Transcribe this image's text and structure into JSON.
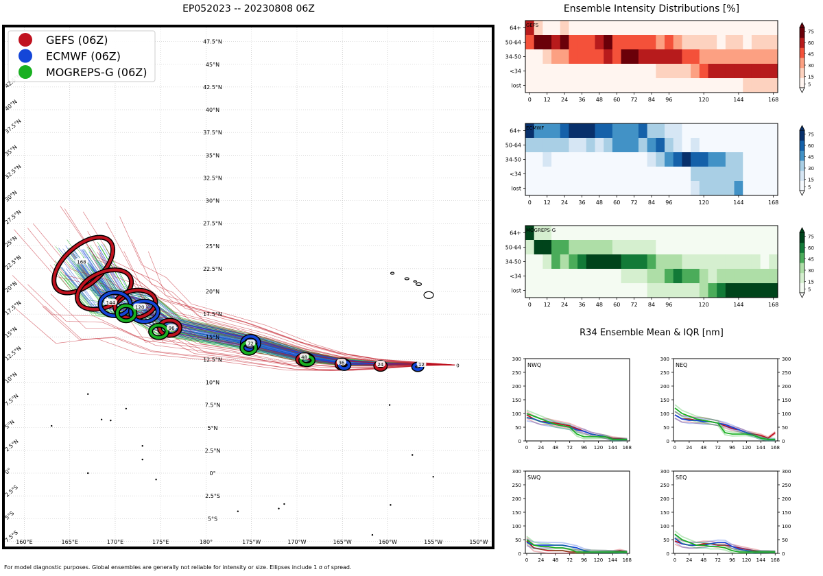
{
  "map": {
    "title": "EP052023 -- 20230808 06Z",
    "legend": [
      {
        "label": "GEFS (06Z)",
        "color": "#c0121f"
      },
      {
        "label": "ECMWF (06Z)",
        "color": "#1446d8"
      },
      {
        "label": "MOGREPS-G (06Z)",
        "color": "#19b021"
      }
    ],
    "lat_labels": [
      "47.5°N",
      "45°N",
      "42.5°N",
      "40°N",
      "37.5°N",
      "35°N",
      "32.5°N",
      "30°N",
      "27.5°N",
      "25°N",
      "22.5°N",
      "20°N",
      "17.5°N",
      "15°N",
      "12.5°N",
      "10°N",
      "7.5°N",
      "5°N",
      "2.5°N",
      "0°",
      "2.5°S",
      "5°S"
    ],
    "lon_labels": [
      "160°E",
      "165°E",
      "170°E",
      "175°E",
      "180°",
      "175°W",
      "170°W",
      "165°W",
      "160°W",
      "155°W",
      "150°W"
    ],
    "left_lat_labels": [
      "42.5°N",
      "40°N",
      "37.5°N",
      "35°N",
      "32.5°N",
      "30°N",
      "27.5°N",
      "25°N",
      "22.5°N",
      "20°N",
      "17.5°N",
      "15°N",
      "12.5°N",
      "10°N",
      "7.5°N",
      "5°N",
      "2.5°N",
      "0°",
      "2.5°S",
      "5°S",
      "7.5°S"
    ],
    "track_labels": [
      {
        "t": "0",
        "lon": -152.3,
        "lat": 11.9
      },
      {
        "t": "12",
        "lon": -156.3,
        "lat": 12.0
      },
      {
        "t": "24",
        "lon": -160.8,
        "lat": 12.0
      },
      {
        "t": "36",
        "lon": -165.1,
        "lat": 12.2
      },
      {
        "t": "48",
        "lon": -169.2,
        "lat": 12.8
      },
      {
        "t": "72",
        "lon": -175.1,
        "lat": 14.3
      },
      {
        "t": "96",
        "lon": -183.8,
        "lat": 16.0
      },
      {
        "t": "120",
        "lon": -187.3,
        "lat": 18.3
      },
      {
        "t": "144",
        "lon": -190.5,
        "lat": 18.8
      },
      {
        "t": "168",
        "lon": -193.7,
        "lat": 23.3
      }
    ],
    "footer": "For model diagnostic purposes. Global ensembles are generally not reliable for intensity or size. Ellipses include 1 σ of spread."
  },
  "intensity": {
    "title": "Ensemble Intensity Distributions [%]",
    "row_labels": [
      "64+",
      "50-64",
      "34-50",
      "<34",
      "lost"
    ],
    "x_ticks": [
      "0",
      "12",
      "24",
      "36",
      "48",
      "60",
      "72",
      "84",
      "96",
      "120",
      "144",
      "168"
    ],
    "colorbar_ticks": [
      "75",
      "60",
      "45",
      "30",
      "15",
      "5"
    ],
    "panels": [
      {
        "name": "GEFS",
        "colormap": "reds"
      },
      {
        "name": "ECMWF",
        "colormap": "blues"
      },
      {
        "name": "MOGREPS-G",
        "colormap": "greens"
      }
    ]
  },
  "r34": {
    "title": "R34 Ensemble Mean & IQR [nm]",
    "y_ticks": [
      "300",
      "250",
      "200",
      "150",
      "100",
      "50",
      "0"
    ],
    "x_ticks": [
      "0",
      "24",
      "48",
      "72",
      "96",
      "120",
      "144",
      "168"
    ],
    "quadrants": [
      "NWQ",
      "NEQ",
      "SWQ",
      "SEQ"
    ]
  },
  "chart_data": [
    {
      "type": "heatmap",
      "title": "GEFS",
      "x": [
        0,
        6,
        12,
        18,
        24,
        30,
        36,
        42,
        48,
        54,
        60,
        66,
        72,
        78,
        84,
        90,
        96,
        102,
        108,
        114,
        120,
        126,
        132,
        138,
        144,
        150,
        156,
        162,
        168
      ],
      "rows": [
        "64+",
        "50-64",
        "34-50",
        "<34",
        "lost"
      ],
      "values": [
        [
          60,
          15,
          5,
          0,
          10,
          0,
          0,
          0,
          0,
          0,
          0,
          0,
          0,
          0,
          0,
          0,
          0,
          0,
          0,
          0,
          0,
          0,
          0,
          0,
          0,
          0,
          0,
          0,
          0
        ],
        [
          40,
          75,
          65,
          55,
          75,
          45,
          45,
          45,
          60,
          75,
          45,
          35,
          35,
          35,
          35,
          20,
          35,
          20,
          15,
          15,
          15,
          15,
          0,
          15,
          15,
          0,
          15,
          15,
          15
        ],
        [
          0,
          5,
          15,
          30,
          30,
          45,
          45,
          45,
          45,
          60,
          45,
          75,
          75,
          60,
          60,
          60,
          60,
          60,
          45,
          45,
          30,
          30,
          30,
          30,
          30,
          30,
          30,
          30,
          30
        ],
        [
          0,
          0,
          0,
          0,
          0,
          0,
          0,
          0,
          0,
          0,
          0,
          0,
          0,
          0,
          0,
          15,
          15,
          15,
          15,
          30,
          45,
          55,
          60,
          60,
          60,
          60,
          60,
          60,
          60
        ],
        [
          0,
          0,
          0,
          0,
          0,
          0,
          0,
          0,
          0,
          0,
          0,
          0,
          0,
          0,
          0,
          0,
          0,
          0,
          0,
          0,
          0,
          0,
          0,
          0,
          5,
          15,
          15,
          15,
          15
        ]
      ],
      "vmax": 75
    },
    {
      "type": "heatmap",
      "title": "ECMWF",
      "x": [
        0,
        6,
        12,
        18,
        24,
        30,
        36,
        42,
        48,
        54,
        60,
        66,
        72,
        78,
        84,
        90,
        96,
        102,
        108,
        114,
        120,
        126,
        132,
        138,
        144,
        150,
        156,
        162,
        168
      ],
      "rows": [
        "64+",
        "50-64",
        "34-50",
        "<34",
        "lost"
      ],
      "values": [
        [
          80,
          45,
          45,
          45,
          60,
          75,
          75,
          75,
          60,
          60,
          45,
          45,
          45,
          60,
          30,
          30,
          15,
          15,
          5,
          5,
          5,
          5,
          5,
          5,
          5,
          0,
          0,
          0,
          0
        ],
        [
          30,
          30,
          30,
          30,
          30,
          15,
          15,
          30,
          15,
          30,
          45,
          45,
          45,
          30,
          45,
          60,
          30,
          15,
          5,
          15,
          5,
          5,
          5,
          5,
          5,
          0,
          0,
          0,
          0
        ],
        [
          5,
          5,
          15,
          5,
          5,
          5,
          5,
          5,
          5,
          5,
          5,
          5,
          5,
          5,
          15,
          30,
          45,
          60,
          75,
          60,
          60,
          45,
          45,
          30,
          30,
          0,
          0,
          0,
          0
        ],
        [
          5,
          5,
          5,
          5,
          5,
          5,
          5,
          5,
          5,
          5,
          5,
          5,
          5,
          5,
          5,
          5,
          5,
          5,
          5,
          30,
          30,
          30,
          30,
          30,
          30,
          0,
          0,
          0,
          0
        ],
        [
          0,
          0,
          0,
          0,
          0,
          0,
          0,
          0,
          0,
          0,
          0,
          0,
          0,
          0,
          0,
          0,
          0,
          0,
          5,
          15,
          30,
          30,
          30,
          30,
          45,
          0,
          0,
          0,
          0
        ]
      ],
      "vmax": 75
    },
    {
      "type": "heatmap",
      "title": "MOGREPS-G",
      "x": [
        0,
        6,
        12,
        18,
        24,
        30,
        36,
        42,
        48,
        54,
        60,
        66,
        72,
        78,
        84,
        90,
        96,
        102,
        108,
        114,
        120,
        126,
        132,
        138,
        144,
        150,
        156,
        162,
        168
      ],
      "rows": [
        "64+",
        "50-64",
        "34-50",
        "<34",
        "lost"
      ],
      "values": [
        [
          75,
          15,
          15,
          5,
          5,
          5,
          5,
          5,
          5,
          5,
          5,
          5,
          5,
          5,
          5,
          5,
          5,
          5,
          5,
          5,
          5,
          5,
          5,
          5,
          5,
          5,
          5,
          5,
          5
        ],
        [
          15,
          75,
          75,
          45,
          45,
          30,
          30,
          20,
          20,
          20,
          15,
          15,
          15,
          15,
          15,
          5,
          5,
          5,
          5,
          5,
          5,
          5,
          5,
          5,
          5,
          5,
          5,
          5,
          5
        ],
        [
          5,
          5,
          15,
          45,
          30,
          45,
          60,
          75,
          75,
          75,
          75,
          60,
          60,
          60,
          45,
          30,
          20,
          20,
          15,
          15,
          15,
          15,
          15,
          15,
          15,
          15,
          15,
          5,
          15
        ],
        [
          5,
          5,
          5,
          5,
          5,
          5,
          5,
          5,
          5,
          5,
          5,
          15,
          15,
          15,
          30,
          30,
          45,
          60,
          45,
          45,
          30,
          15,
          20,
          30,
          30,
          30,
          30,
          20,
          20
        ],
        [
          5,
          5,
          5,
          5,
          5,
          5,
          5,
          5,
          5,
          5,
          5,
          5,
          5,
          5,
          15,
          15,
          15,
          15,
          15,
          15,
          30,
          45,
          60,
          75,
          75,
          75,
          75,
          75,
          75
        ]
      ],
      "vmax": 75
    },
    {
      "type": "line",
      "title": "R34 Ensemble Mean & IQR [nm]",
      "x": [
        0,
        12,
        24,
        36,
        48,
        60,
        72,
        84,
        96,
        108,
        120,
        132,
        144,
        156,
        168
      ],
      "ylim": [
        0,
        300
      ],
      "quadrants": [
        {
          "name": "NWQ",
          "series": [
            {
              "name": "GEFS",
              "values": [
                95,
                80,
                70,
                70,
                65,
                60,
                55,
                45,
                35,
                25,
                20,
                15,
                10,
                8,
                5
              ]
            },
            {
              "name": "ECMWF",
              "values": [
                85,
                80,
                70,
                65,
                60,
                55,
                50,
                40,
                35,
                25,
                20,
                15,
                5,
                5,
                5
              ]
            },
            {
              "name": "MOGREPS-G",
              "values": [
                100,
                90,
                80,
                70,
                60,
                55,
                50,
                25,
                15,
                15,
                15,
                15,
                5,
                5,
                5
              ]
            }
          ]
        },
        {
          "name": "NEQ",
          "series": [
            {
              "name": "GEFS",
              "values": [
                95,
                80,
                80,
                75,
                75,
                70,
                65,
                55,
                45,
                40,
                30,
                25,
                20,
                10,
                30
              ]
            },
            {
              "name": "ECMWF",
              "values": [
                95,
                80,
                75,
                75,
                70,
                70,
                65,
                60,
                50,
                40,
                30,
                20,
                10,
                5,
                5
              ]
            },
            {
              "name": "MOGREPS-G",
              "values": [
                120,
                100,
                90,
                80,
                75,
                70,
                65,
                30,
                25,
                25,
                25,
                20,
                10,
                5,
                5
              ]
            }
          ]
        },
        {
          "name": "SWQ",
          "series": [
            {
              "name": "GEFS",
              "values": [
                45,
                20,
                15,
                10,
                10,
                10,
                5,
                5,
                5,
                5,
                5,
                5,
                5,
                10,
                5
              ]
            },
            {
              "name": "ECMWF",
              "values": [
                40,
                30,
                30,
                30,
                30,
                30,
                25,
                20,
                10,
                5,
                5,
                5,
                5,
                5,
                5
              ]
            },
            {
              "name": "MOGREPS-G",
              "values": [
                50,
                30,
                25,
                25,
                20,
                20,
                15,
                5,
                5,
                5,
                5,
                5,
                5,
                5,
                5
              ]
            }
          ]
        },
        {
          "name": "SEQ",
          "series": [
            {
              "name": "GEFS",
              "values": [
                45,
                35,
                30,
                30,
                35,
                35,
                30,
                30,
                25,
                20,
                15,
                10,
                5,
                5,
                5
              ]
            },
            {
              "name": "ECMWF",
              "values": [
                55,
                35,
                30,
                30,
                30,
                35,
                40,
                40,
                25,
                15,
                10,
                5,
                5,
                5,
                5
              ]
            },
            {
              "name": "MOGREPS-G",
              "values": [
                70,
                50,
                40,
                30,
                30,
                25,
                25,
                20,
                10,
                5,
                5,
                5,
                5,
                5,
                5
              ]
            }
          ]
        }
      ]
    }
  ]
}
